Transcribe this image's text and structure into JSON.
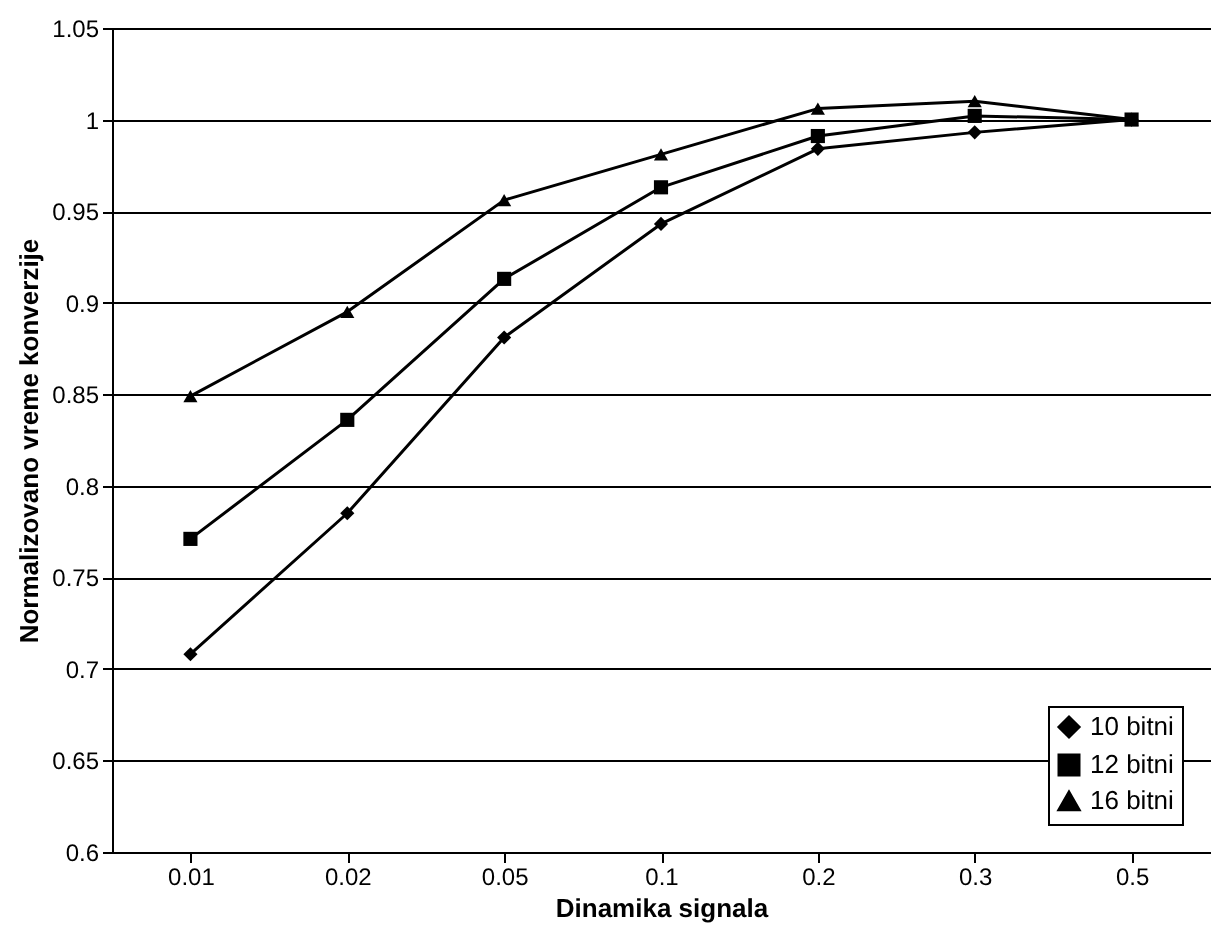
{
  "chart_data": {
    "type": "line",
    "xlabel": "Dinamika signala",
    "ylabel": "Normalizovano vreme konverzije",
    "categories": [
      "0.01",
      "0.02",
      "0.05",
      "0.1",
      "0.2",
      "0.3",
      "0.5"
    ],
    "series": [
      {
        "name": "10 bitni",
        "color": "#000000",
        "marker": "diamond",
        "values": [
          0.708,
          0.785,
          0.881,
          0.943,
          0.984,
          0.993,
          1.0
        ]
      },
      {
        "name": "12 bitni",
        "color": "#000000",
        "marker": "square",
        "values": [
          0.771,
          0.836,
          0.913,
          0.963,
          0.991,
          1.002,
          1.0
        ]
      },
      {
        "name": "16 bitni",
        "color": "#000000",
        "marker": "triangle",
        "values": [
          0.849,
          0.895,
          0.956,
          0.981,
          1.006,
          1.01,
          1.0
        ]
      }
    ],
    "ylim": [
      0.6,
      1.05
    ],
    "yticks": [
      0.6,
      0.65,
      0.7,
      0.75,
      0.8,
      0.85,
      0.9,
      0.95,
      1,
      1.05
    ],
    "grid": "y",
    "legend": "bottom right",
    "line_style": "solid"
  }
}
